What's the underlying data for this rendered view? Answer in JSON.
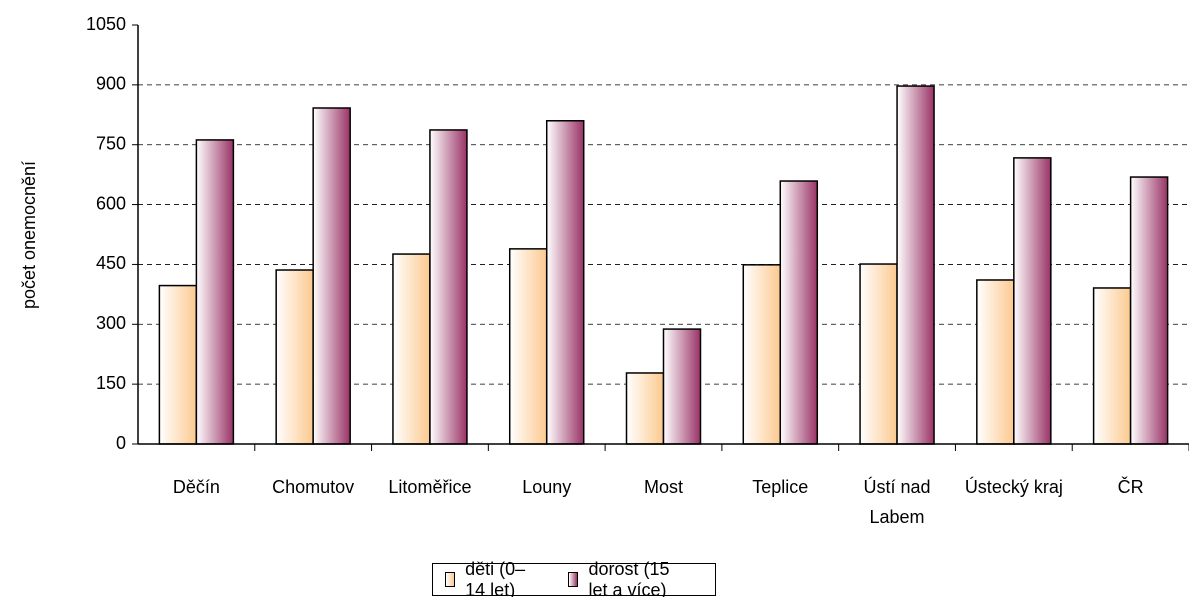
{
  "chart_data": {
    "type": "bar",
    "y_axis_label": "počet onemocnění",
    "categories": [
      "Děčín",
      "Chomutov",
      "Litoměřice",
      "Louny",
      "Most",
      "Teplice",
      "Ústí nad Labem",
      "Ústecký kraj",
      "ČR"
    ],
    "series": [
      {
        "name": "děti (0–14 let)",
        "color": "#fcc98f",
        "values": [
          397,
          436,
          476,
          489,
          178,
          449,
          451,
          411,
          391
        ]
      },
      {
        "name": "dorost (15 let a více)",
        "color": "#993366",
        "values": [
          762,
          842,
          787,
          810,
          288,
          659,
          897,
          717,
          669
        ]
      }
    ],
    "ylim": [
      0,
      1050
    ],
    "yticks": [
      0,
      150,
      300,
      450,
      600,
      750,
      900,
      1050
    ],
    "grid": true,
    "legend": "bottom"
  }
}
